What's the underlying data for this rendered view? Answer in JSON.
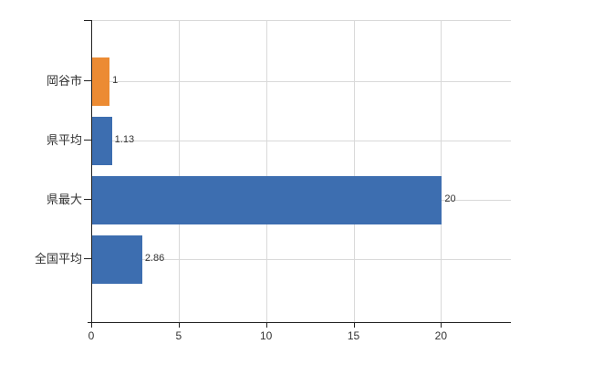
{
  "chart_data": {
    "type": "bar",
    "orientation": "horizontal",
    "title": "",
    "categories": [
      "岡谷市",
      "県平均",
      "県最大",
      "全国平均"
    ],
    "values": [
      1,
      1.13,
      20,
      2.86
    ],
    "value_labels": [
      "1",
      "1.13",
      "20",
      "2.86"
    ],
    "bar_colors": [
      "#ec8b33",
      "#3d6eb0",
      "#3d6eb0",
      "#3d6eb0"
    ],
    "x_ticks": [
      "0",
      "5",
      "10",
      "15",
      "20"
    ],
    "x_tick_values": [
      0,
      5,
      10,
      15,
      20
    ],
    "xlim": [
      0,
      24
    ],
    "grid": true,
    "legend": "none",
    "xlabel": "",
    "ylabel": ""
  },
  "colors": {
    "background": "#ffffff",
    "bar_blue": "#3d6eb0",
    "bar_orange": "#ec8b33",
    "grid": "#d9d9d9",
    "axis": "#222222",
    "text": "#333333"
  }
}
